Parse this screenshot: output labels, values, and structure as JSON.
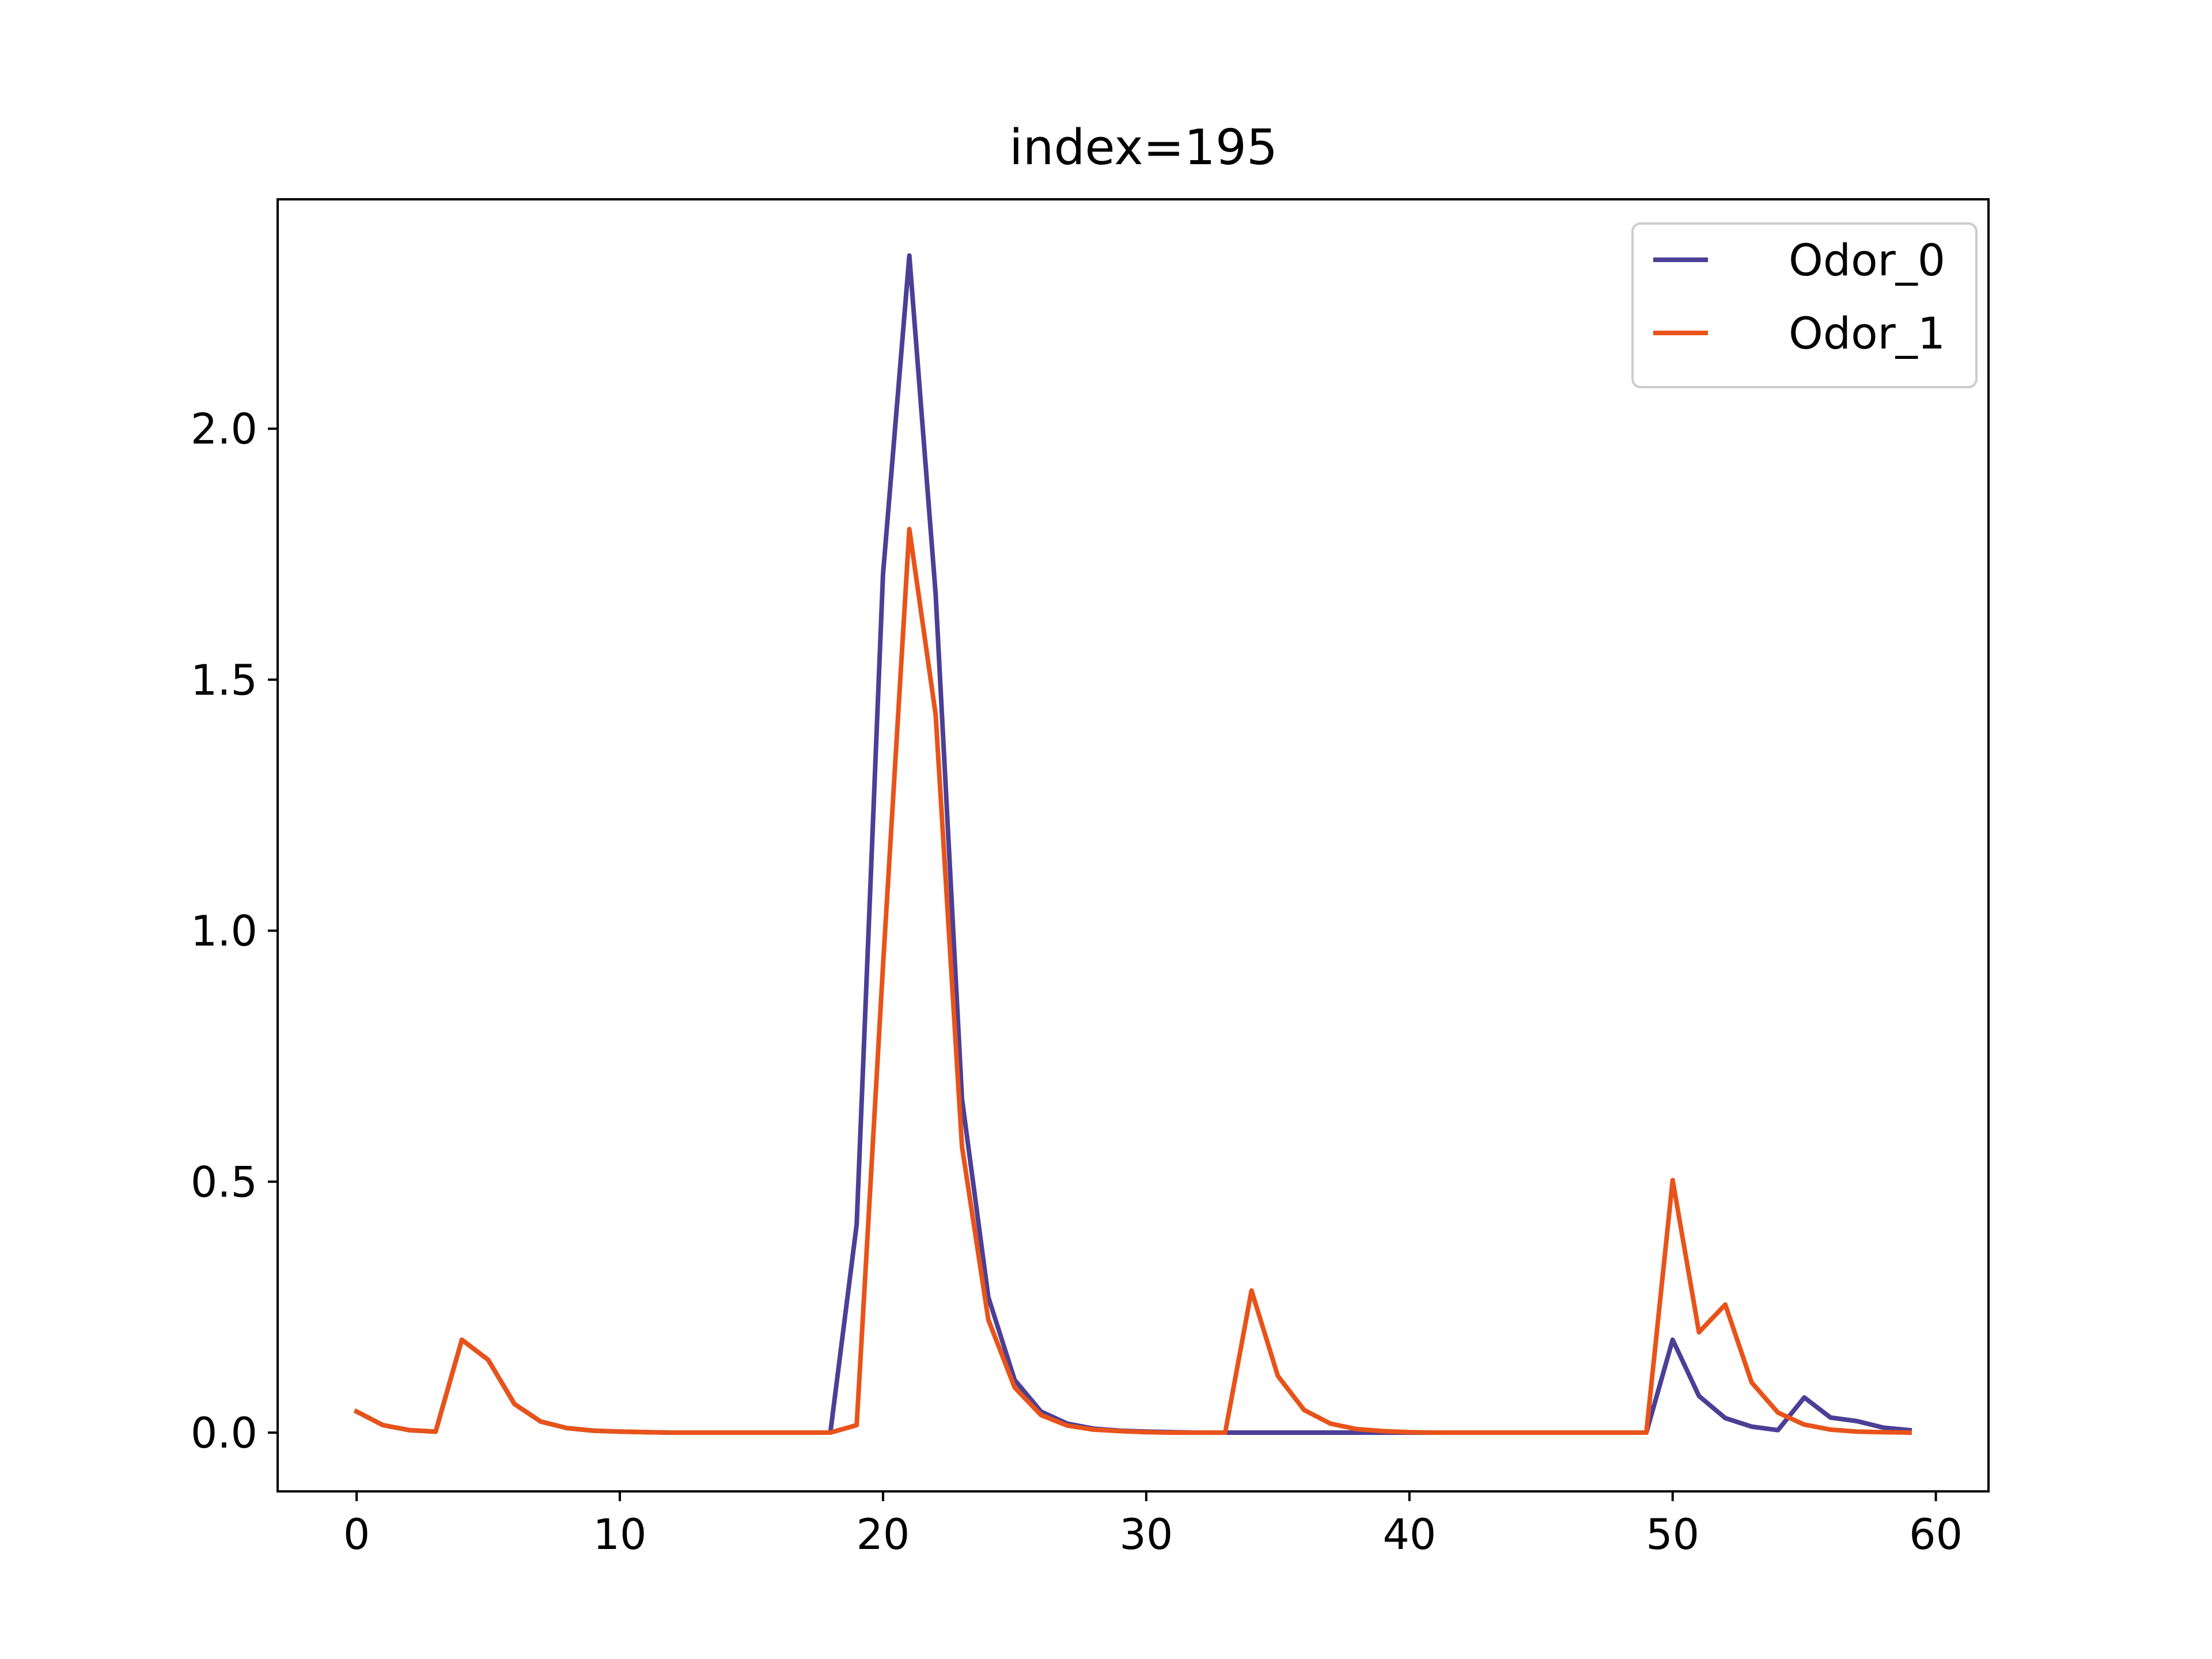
{
  "chart_data": {
    "type": "line",
    "title": "index=195",
    "xlabel": "",
    "ylabel": "",
    "xlim": [
      -3,
      62
    ],
    "ylim": [
      -0.117,
      2.457
    ],
    "xticks": [
      0,
      10,
      20,
      30,
      40,
      50,
      60
    ],
    "xtick_labels": [
      "0",
      "10",
      "20",
      "30",
      "40",
      "50",
      "60"
    ],
    "yticks": [
      0.0,
      0.5,
      1.0,
      1.5,
      2.0
    ],
    "ytick_labels": [
      "0.0",
      "0.5",
      "1.0",
      "1.5",
      "2.0"
    ],
    "grid": false,
    "legend_position": "top-right",
    "x": [
      0,
      1,
      2,
      3,
      4,
      5,
      6,
      7,
      8,
      9,
      10,
      11,
      12,
      13,
      14,
      15,
      16,
      17,
      18,
      19,
      20,
      21,
      22,
      23,
      24,
      25,
      26,
      27,
      28,
      29,
      30,
      31,
      32,
      33,
      34,
      35,
      36,
      37,
      38,
      39,
      40,
      41,
      42,
      43,
      44,
      45,
      46,
      47,
      48,
      49,
      50,
      51,
      52,
      53,
      54,
      55,
      56,
      57,
      58,
      59
    ],
    "series": [
      {
        "name": "Odor_0",
        "color": "#4b3f96",
        "values": [
          0.042,
          0.015,
          0.005,
          0.002,
          0.185,
          0.145,
          0.057,
          0.022,
          0.009,
          0.004,
          0.002,
          0.001,
          0.0,
          0.0,
          0.0,
          0.0,
          0.0,
          0.0,
          0.0,
          0.415,
          1.71,
          2.345,
          1.67,
          0.665,
          0.27,
          0.105,
          0.042,
          0.018,
          0.008,
          0.004,
          0.002,
          0.001,
          0.0,
          0.0,
          0.0,
          0.0,
          0.0,
          0.0,
          0.0,
          0.0,
          0.0,
          0.0,
          0.0,
          0.0,
          0.0,
          0.0,
          0.0,
          0.0,
          0.0,
          0.0,
          0.185,
          0.073,
          0.029,
          0.012,
          0.005,
          0.07,
          0.03,
          0.023,
          0.01,
          0.005
        ]
      },
      {
        "name": "Odor_1",
        "color": "#e8531a",
        "values": [
          0.042,
          0.015,
          0.005,
          0.002,
          0.185,
          0.145,
          0.057,
          0.022,
          0.009,
          0.004,
          0.002,
          0.001,
          0.0,
          0.0,
          0.0,
          0.0,
          0.0,
          0.0,
          0.0,
          0.015,
          0.93,
          1.8,
          1.43,
          0.57,
          0.225,
          0.09,
          0.035,
          0.014,
          0.006,
          0.003,
          0.001,
          0.0,
          0.0,
          0.0,
          0.283,
          0.113,
          0.045,
          0.018,
          0.007,
          0.003,
          0.001,
          0.0,
          0.0,
          0.0,
          0.0,
          0.0,
          0.0,
          0.0,
          0.0,
          0.0,
          0.503,
          0.2,
          0.255,
          0.1,
          0.04,
          0.016,
          0.006,
          0.002,
          0.001,
          0.0
        ]
      }
    ]
  }
}
